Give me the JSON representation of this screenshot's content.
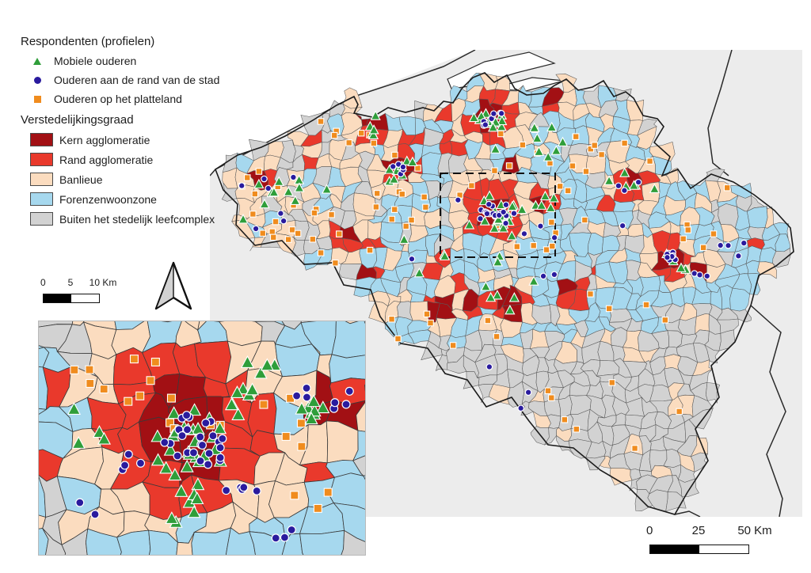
{
  "legend": {
    "respondents": {
      "title": "Respondenten (profielen)",
      "items": [
        {
          "label": "Mobiele ouderen",
          "marker": "triangle",
          "color": "#2f9e3a"
        },
        {
          "label": "Ouderen aan de rand van de stad",
          "marker": "circle",
          "color": "#2a1b9e"
        },
        {
          "label": "Ouderen op het platteland",
          "marker": "square",
          "color": "#f08c1e"
        }
      ]
    },
    "urbanization": {
      "title": "Verstedelijkingsgraad",
      "items": [
        {
          "label": "Kern agglomeratie",
          "color": "#a21014"
        },
        {
          "label": "Rand agglomeratie",
          "color": "#e9392c"
        },
        {
          "label": "Banlieue",
          "color": "#fbdcbf"
        },
        {
          "label": "Forenzenwoonzone",
          "color": "#a6d8ee"
        },
        {
          "label": "Buiten het stedelijk leefcomplex",
          "color": "#d2d2d2"
        }
      ]
    }
  },
  "scalebars": {
    "inset": {
      "ticks": [
        "0",
        "5",
        "10 Km"
      ]
    },
    "main": {
      "ticks": [
        "0",
        "25",
        "50 Km"
      ]
    }
  },
  "map": {
    "neighbor_land": "#ececec",
    "sea": "#ffffff",
    "country_border": "#2a2a2a",
    "municipality_border": "#5a5a5a",
    "belgium_outline": "#1c1c1c",
    "colors": {
      "kern": "#a21014",
      "rand": "#e9392c",
      "banlieue": "#fbdcbf",
      "forenzen": "#a6d8ee",
      "buiten": "#d2d2d2"
    },
    "markers": {
      "triangle": "#2f9e3a",
      "circle": "#2a1b9e",
      "square": "#f08c1e"
    }
  }
}
